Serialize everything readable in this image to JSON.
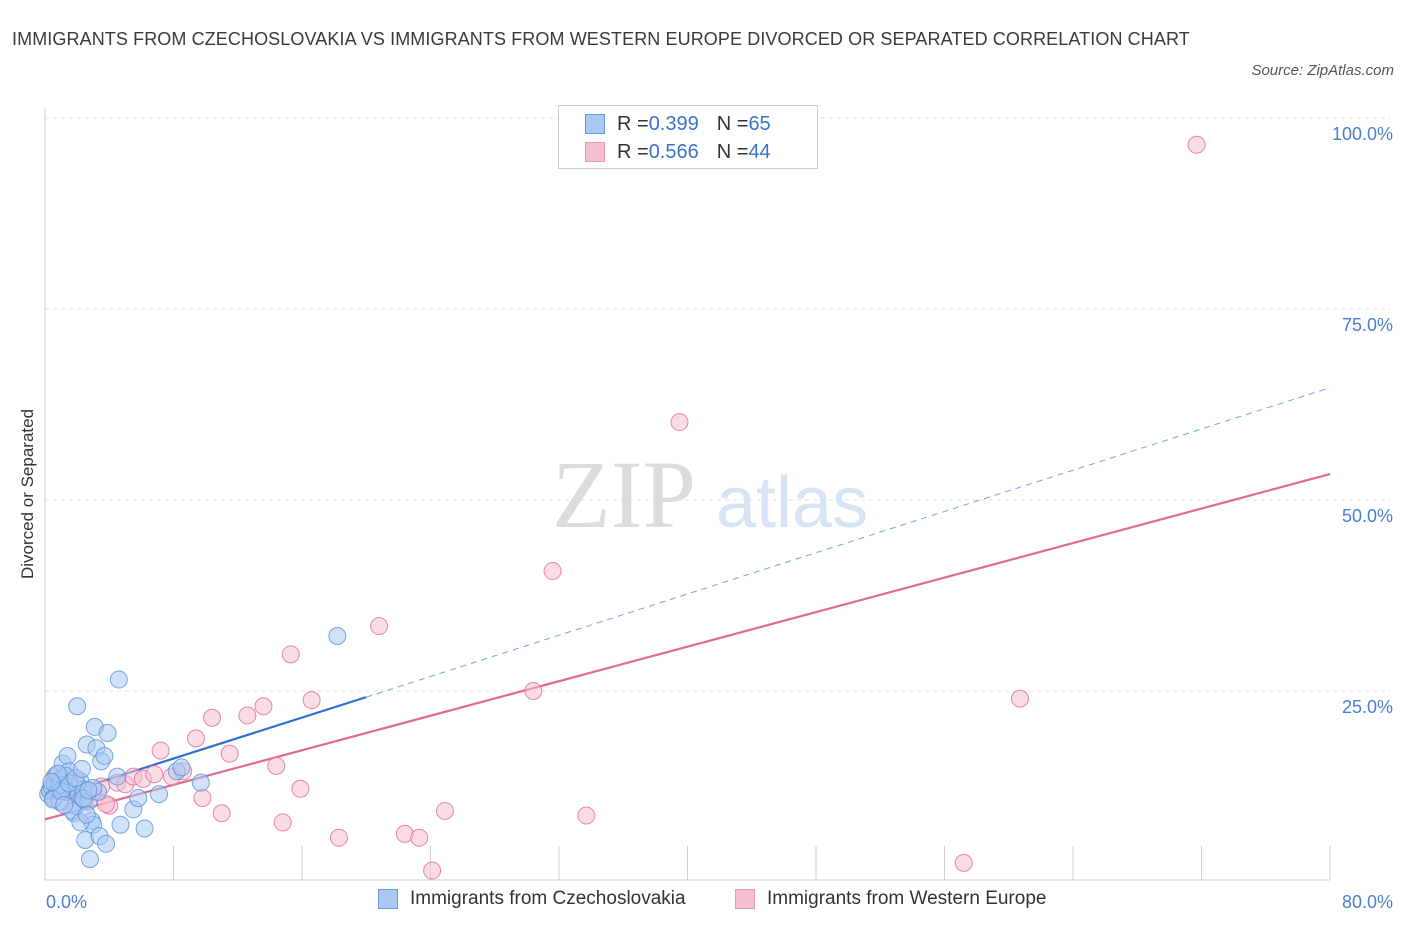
{
  "title": "IMMIGRANTS FROM CZECHOSLOVAKIA VS IMMIGRANTS FROM WESTERN EUROPE DIVORCED OR SEPARATED CORRELATION CHART",
  "source": "Source: ZipAtlas.com",
  "watermark": {
    "zip": "ZIP",
    "atlas": "atlas"
  },
  "legend": {
    "r_label": "R = ",
    "n_label": "N = ",
    "rows": [
      {
        "r": "0.399",
        "n": "65",
        "color": "#a9c8f2"
      },
      {
        "r": "0.566",
        "n": "44",
        "color": "#f6bfd0"
      }
    ]
  },
  "bottom_legend": [
    {
      "label": "Immigrants from Czechoslovakia",
      "color": "#a9c8f2"
    },
    {
      "label": "Immigrants from Western Europe",
      "color": "#f6bfd0"
    }
  ],
  "chart_data": {
    "type": "scatter",
    "xlabel": "",
    "ylabel": "Divorced or Separated",
    "xlim": [
      0,
      80
    ],
    "ylim": [
      0,
      100
    ],
    "x_tick_labels": [
      "0.0%",
      "80.0%"
    ],
    "y_tick_labels": [
      "100.0%",
      "75.0%",
      "50.0%",
      "25.0%"
    ],
    "y_tick_values": [
      100,
      75,
      50,
      25
    ],
    "grid": true,
    "legend_position": "top-center",
    "series": [
      {
        "name": "Immigrants from Czechoslovakia",
        "color": "#5b93d9",
        "fill": "#a9c8f2",
        "trend": {
          "x0": 0,
          "y0": 10.8,
          "x1": 20,
          "y1": 24.2,
          "dashed_to": 80,
          "dashed_y": 64.7
        },
        "points": [
          [
            0.2,
            11.5
          ],
          [
            0.3,
            12
          ],
          [
            0.4,
            12.5
          ],
          [
            0.5,
            11
          ],
          [
            0.6,
            13
          ],
          [
            0.7,
            14
          ],
          [
            0.8,
            12
          ],
          [
            0.9,
            10.5
          ],
          [
            1.0,
            13.5
          ],
          [
            1.1,
            15.5
          ],
          [
            1.2,
            12.2
          ],
          [
            1.3,
            11.8
          ],
          [
            1.4,
            16.5
          ],
          [
            1.5,
            14.5
          ],
          [
            1.6,
            13
          ],
          [
            1.7,
            12.5
          ],
          [
            1.8,
            9
          ],
          [
            1.9,
            10
          ],
          [
            2.0,
            12.8
          ],
          [
            2.1,
            11.5
          ],
          [
            2.2,
            13.2
          ],
          [
            2.3,
            11
          ],
          [
            2.4,
            12.1
          ],
          [
            2.5,
            5.5
          ],
          [
            2.6,
            18
          ],
          [
            2.7,
            10.5
          ],
          [
            2.8,
            3
          ],
          [
            2.9,
            8
          ],
          [
            3.0,
            7.5
          ],
          [
            3.1,
            20.3
          ],
          [
            3.2,
            17.5
          ],
          [
            3.3,
            11.8
          ],
          [
            3.4,
            6
          ],
          [
            3.5,
            15.8
          ],
          [
            3.7,
            16.5
          ],
          [
            3.8,
            5
          ],
          [
            3.9,
            19.5
          ],
          [
            2.0,
            23
          ],
          [
            4.5,
            13.8
          ],
          [
            4.7,
            7.5
          ],
          [
            4.6,
            26.5
          ],
          [
            5.5,
            9.5
          ],
          [
            5.8,
            11
          ],
          [
            6.2,
            7
          ],
          [
            7.1,
            11.5
          ],
          [
            8.2,
            14.5
          ],
          [
            8.5,
            15
          ],
          [
            9.7,
            13
          ],
          [
            18.2,
            32.2
          ],
          [
            0.9,
            12.7
          ],
          [
            1.3,
            13.9
          ],
          [
            1.7,
            9.3
          ],
          [
            2.2,
            7.8
          ],
          [
            2.6,
            8.8
          ],
          [
            0.5,
            10.8
          ],
          [
            1.0,
            11.9
          ],
          [
            1.5,
            12.9
          ],
          [
            2.4,
            10.9
          ],
          [
            3.0,
            12.3
          ],
          [
            0.8,
            14.2
          ],
          [
            1.9,
            13.6
          ],
          [
            2.7,
            12.0
          ],
          [
            0.4,
            13.1
          ],
          [
            1.2,
            10.1
          ],
          [
            2.3,
            14.8
          ]
        ]
      },
      {
        "name": "Immigrants from Western Europe",
        "color": "#e36b96",
        "fill": "#f6bfd0",
        "trend": {
          "x0": 0,
          "y0": 8.2,
          "x1": 80,
          "y1": 53.4
        },
        "points": [
          [
            0.3,
            12
          ],
          [
            0.6,
            13.8
          ],
          [
            1.0,
            10.5
          ],
          [
            1.4,
            12.2
          ],
          [
            2.0,
            11.5
          ],
          [
            2.5,
            10.8
          ],
          [
            3.0,
            11.8
          ],
          [
            3.5,
            12.5
          ],
          [
            4.0,
            10
          ],
          [
            4.5,
            13
          ],
          [
            5.0,
            12.8
          ],
          [
            5.5,
            13.8
          ],
          [
            6.1,
            13.5
          ],
          [
            7.2,
            17.2
          ],
          [
            7.9,
            13.8
          ],
          [
            8.6,
            14.5
          ],
          [
            9.4,
            18.8
          ],
          [
            9.8,
            11
          ],
          [
            10.4,
            21.5
          ],
          [
            11.0,
            9
          ],
          [
            11.5,
            16.8
          ],
          [
            12.6,
            21.8
          ],
          [
            13.6,
            23
          ],
          [
            14.4,
            15.2
          ],
          [
            14.8,
            7.8
          ],
          [
            15.3,
            29.8
          ],
          [
            15.9,
            12.2
          ],
          [
            16.6,
            23.8
          ],
          [
            18.3,
            5.8
          ],
          [
            20.8,
            33.5
          ],
          [
            22.4,
            6.3
          ],
          [
            23.3,
            5.8
          ],
          [
            24.1,
            1.5
          ],
          [
            24.9,
            9.3
          ],
          [
            30.4,
            25
          ],
          [
            31.6,
            40.7
          ],
          [
            33.7,
            8.7
          ],
          [
            39.5,
            60.2
          ],
          [
            57.2,
            2.5
          ],
          [
            60.7,
            24
          ],
          [
            71.7,
            96.5
          ],
          [
            6.8,
            14.1
          ],
          [
            3.8,
            10.2
          ],
          [
            1.8,
            13.2
          ]
        ]
      }
    ]
  }
}
